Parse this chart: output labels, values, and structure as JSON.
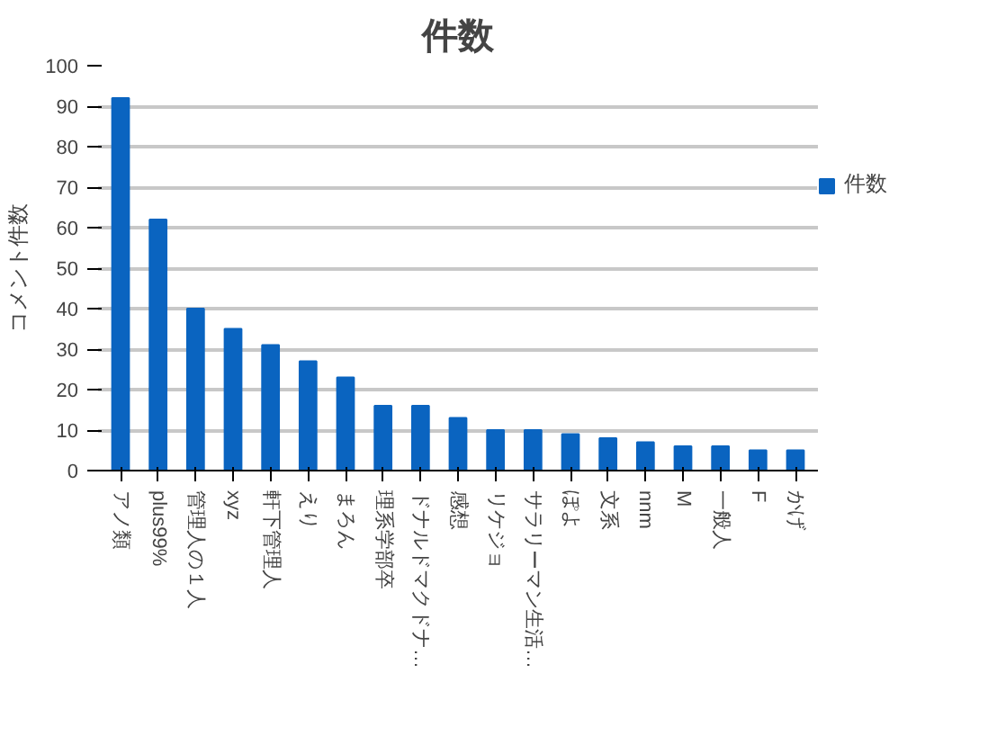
{
  "chart_data": {
    "type": "bar",
    "title": "件数",
    "ylabel": "コメント件数",
    "categories": [
      "アノ類",
      "plus99%",
      "管理人の１人",
      "xyz",
      "軒下管理人",
      "えり",
      "まろん",
      "理系学部卒",
      "ドナルドマクドナ…",
      "感想",
      "リケジョ",
      "サラリーマン生活…",
      "ぽよ",
      "文系",
      "nnm",
      "M",
      "一般人",
      "F",
      "かげ"
    ],
    "series": [
      {
        "name": "件数",
        "color": "#0a64c0",
        "values": [
          92,
          62,
          40,
          35,
          31,
          27,
          23,
          16,
          16,
          13,
          10,
          10,
          9,
          8,
          7,
          6,
          6,
          5,
          5
        ]
      }
    ],
    "ylim": [
      0,
      100
    ],
    "yticks": [
      0,
      10,
      20,
      30,
      40,
      50,
      60,
      70,
      80,
      90,
      100
    ],
    "grid": "y",
    "legend": "right"
  }
}
